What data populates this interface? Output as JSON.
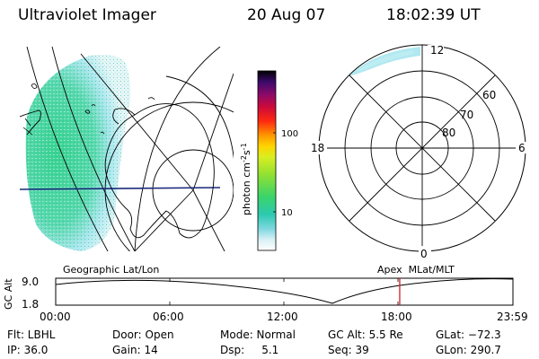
{
  "header": {
    "title": "Ultraviolet Imager",
    "date": "20 Aug 07",
    "time": "18:02:39 UT"
  },
  "colorbar": {
    "unit_label": "photon cm",
    "unit_exp1": "-2",
    "unit_mid": "s",
    "unit_exp2": "-1",
    "scale": "log",
    "ticks": [
      "100",
      "10"
    ]
  },
  "polar_plot": {
    "lat_labels": [
      "60",
      "70",
      "80"
    ],
    "mlt_labels": {
      "top": "12",
      "left": "18",
      "right": "6",
      "bottom": "0"
    }
  },
  "panel_labels": {
    "left": "Geographic Lat/Lon",
    "right": "Apex  MLat/MLT"
  },
  "altitude_plot": {
    "ylabel": "GC Alt",
    "y_ticks": [
      "9.0",
      "1.8"
    ],
    "x_ticks": [
      "00:00",
      "06:00",
      "12:00",
      "18:00",
      "23:59"
    ],
    "current_time_hours": 18.044,
    "marker_color": "#cc2222"
  },
  "info": {
    "flt": "Flt: LBHL",
    "ip": "IP: 36.0",
    "door": "Door: Open",
    "gain": "Gain: 14",
    "mode": "Mode: Normal",
    "dsp": "Dsp:     5.1",
    "gc_alt": "GC Alt: 5.5 Re",
    "seq": "Seq: 39",
    "glat": "GLat: −72.3",
    "glon": "GLon: 290.7"
  },
  "colors": {
    "background": "#ffffff",
    "aurora_green": "#2ed08a",
    "aurora_cyan": "#a8e6ef",
    "map_line": "#000000",
    "equator_line": "#1a2a7a"
  }
}
